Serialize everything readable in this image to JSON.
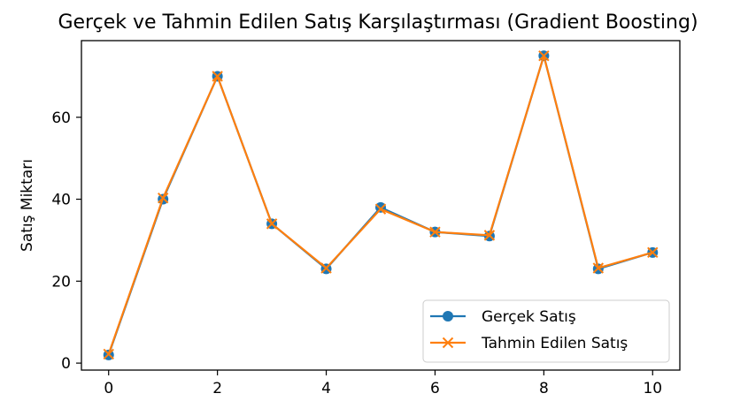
{
  "chart_data": {
    "type": "line",
    "title": "Gerçek ve Tahmin Edilen Satış Karşılaştırması (Gradient Boosting)",
    "xlabel": "",
    "ylabel": "Satış Miktarı",
    "x": [
      0,
      1,
      2,
      3,
      4,
      5,
      6,
      7,
      8,
      9,
      10
    ],
    "xlim": [
      -0.5,
      10.5
    ],
    "ylim": [
      -1.7,
      78.7
    ],
    "xticks": [
      0,
      2,
      4,
      6,
      8,
      10
    ],
    "yticks": [
      0,
      20,
      40,
      60
    ],
    "grid": false,
    "legend_position": "lower-right",
    "series": [
      {
        "name": "Gerçek Satış",
        "values": [
          2,
          40,
          70,
          34,
          23,
          38,
          32,
          31,
          75,
          23,
          27
        ],
        "marker": "circle",
        "color": "#1f77b4"
      },
      {
        "name": "Tahmin Edilen Satış",
        "values": [
          2.2,
          40.3,
          70.0,
          34.0,
          23.2,
          37.6,
          32.0,
          31.2,
          75.0,
          23.2,
          27.0
        ],
        "marker": "x",
        "color": "#ff7f0e"
      }
    ]
  }
}
